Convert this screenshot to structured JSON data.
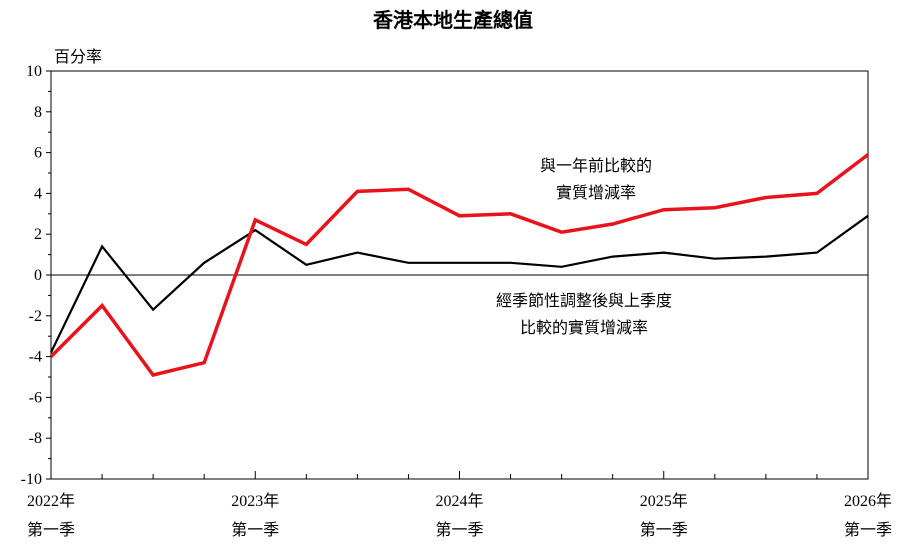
{
  "chart_data": {
    "type": "line",
    "title": "香港本地生產總值",
    "ylabel": "百分率",
    "ylim": [
      -10,
      10
    ],
    "yticks": [
      10,
      8,
      6,
      4,
      2,
      0,
      -2,
      -4,
      -6,
      -8,
      -10
    ],
    "x_labels": [
      {
        "index": 0,
        "year": "2022年",
        "quarter": "第一季"
      },
      {
        "index": 4,
        "year": "2023年",
        "quarter": "第一季"
      },
      {
        "index": 8,
        "year": "2024年",
        "quarter": "第一季"
      },
      {
        "index": 12,
        "year": "2025年",
        "quarter": "第一季"
      },
      {
        "index": 16,
        "year": "2026年",
        "quarter": "第一季"
      }
    ],
    "categories": [
      "2022 Q1",
      "2022 Q2",
      "2022 Q3",
      "2022 Q4",
      "2023 Q1",
      "2023 Q2",
      "2023 Q3",
      "2023 Q4",
      "2024 Q1",
      "2024 Q2",
      "2024 Q3",
      "2024 Q4",
      "2025 Q1",
      "2025 Q2",
      "2025 Q3",
      "2025 Q4",
      "2026 Q1"
    ],
    "series": [
      {
        "name": "與一年前比較的實質增減率",
        "label_lines": [
          "與一年前比較的",
          "實質增減率"
        ],
        "color": "#e8141c",
        "values": [
          -4.0,
          -1.5,
          -4.9,
          -4.3,
          2.7,
          1.5,
          4.1,
          4.2,
          2.9,
          3.0,
          2.1,
          2.5,
          3.2,
          3.3,
          3.8,
          4.0,
          5.9
        ]
      },
      {
        "name": "經季節性調整後與上季度比較的實質增減率",
        "label_lines": [
          "經季節性調整後與上季度",
          "比較的實質增減率"
        ],
        "color": "#000000",
        "values": [
          -3.8,
          1.4,
          -1.7,
          0.6,
          2.2,
          0.5,
          1.1,
          0.6,
          0.6,
          0.6,
          0.4,
          0.9,
          1.1,
          0.8,
          0.9,
          1.1,
          2.9
        ]
      }
    ],
    "grid": false,
    "zero_line": true
  }
}
